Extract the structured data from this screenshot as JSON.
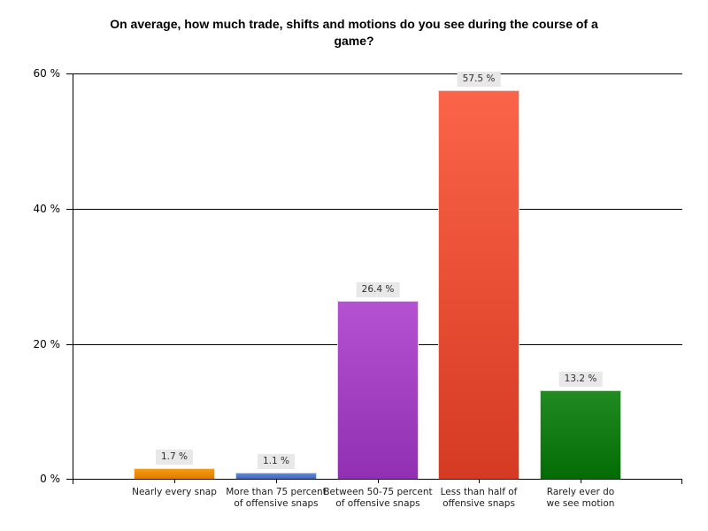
{
  "title": {
    "line1": "On average, how much trade, shifts and motions do you see during the course of a",
    "line2": "game?"
  },
  "chart_data": {
    "type": "bar",
    "title": "On average, how much trade, shifts and motions do you see during the course of a game?",
    "categories": [
      "Nearly every snap",
      "More than 75 percent of offensive snaps",
      "Between 50-75 percent of offensive snaps",
      "Less than half of offensive snaps",
      "Rarely ever do we see motion"
    ],
    "category_label_lines": [
      [
        "Nearly every snap"
      ],
      [
        "More than 75 percent",
        "of offensive snaps"
      ],
      [
        "Between 50-75 percent",
        "of offensive snaps"
      ],
      [
        "Less than half of",
        "offensive snaps"
      ],
      [
        "Rarely ever do",
        "we see motion"
      ]
    ],
    "values": [
      1.7,
      1.1,
      26.4,
      57.5,
      13.2
    ],
    "value_labels": [
      "1.7 %",
      "1.1 %",
      "26.4 %",
      "57.5 %",
      "13.2 %"
    ],
    "bar_colors": [
      {
        "top": "#F69B0E",
        "bottom": "#E07C00"
      },
      {
        "top": "#5C89DE",
        "bottom": "#4066BE"
      },
      {
        "top": "#B551D3",
        "bottom": "#9130B2"
      },
      {
        "top": "#FB6448",
        "bottom": "#D53A22"
      },
      {
        "top": "#228A22",
        "bottom": "#046C04"
      }
    ],
    "y_axis": {
      "ticks": [
        {
          "label": "60 %",
          "value": 60
        },
        {
          "label": "40 %",
          "value": 40
        },
        {
          "label": "20 %",
          "value": 20
        },
        {
          "label": "0 %",
          "value": 0
        }
      ],
      "ylim": [
        0,
        60
      ]
    },
    "xlabel": "",
    "ylabel": "",
    "grid": true,
    "legend": false,
    "background": "#FFFFFF",
    "axis_color": "#000000",
    "value_label_bg": "#E8E8E8"
  }
}
